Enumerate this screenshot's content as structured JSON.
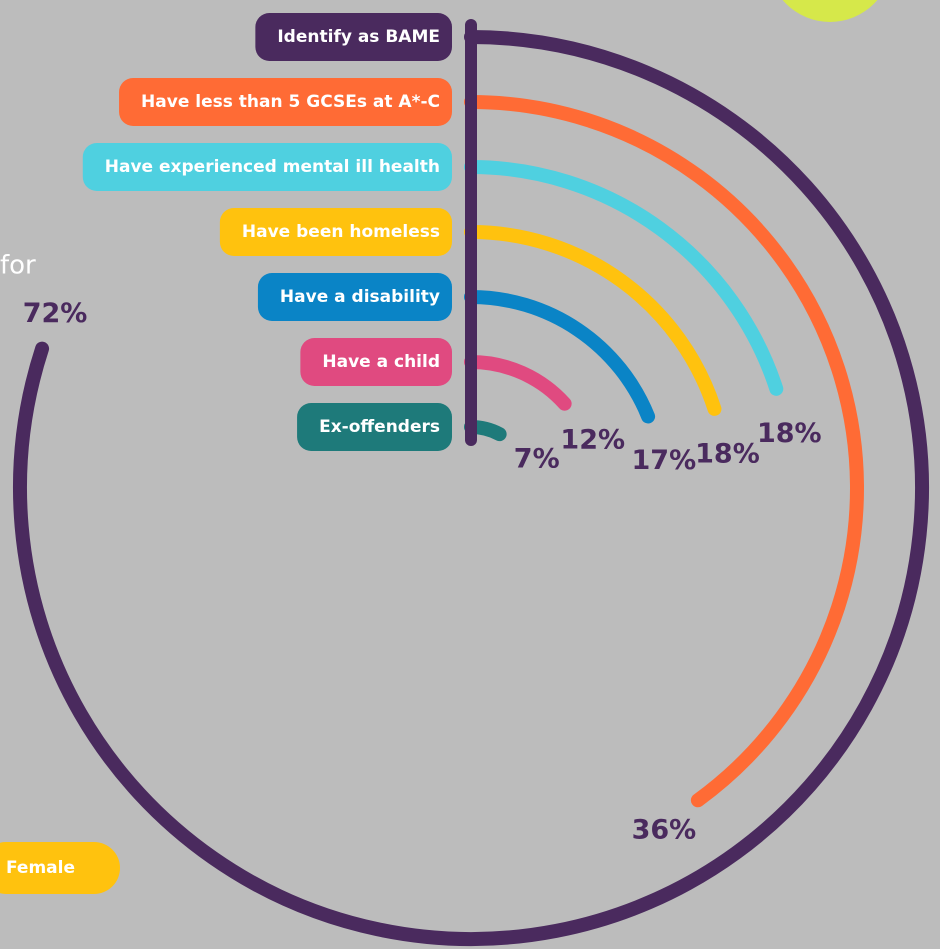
{
  "chart_data": {
    "type": "radial_bar",
    "categories": [
      "Identify as BAME",
      "Have less than 5 GCSEs at A*-C",
      "Have experienced mental ill health",
      "Have been homeless",
      "Have a disability",
      "Have a child",
      "Ex-offenders"
    ],
    "values": [
      72,
      36,
      18,
      18,
      17,
      12,
      7
    ],
    "value_labels": [
      "72%",
      "36%",
      "18%",
      "18%",
      "17%",
      "12%",
      "7%"
    ],
    "colors": [
      "#4a2a5e",
      "#ff6b35",
      "#4fd0e0",
      "#ffc20e",
      "#0a84c6",
      "#e04a80",
      "#1e7a7a"
    ],
    "annotations": [
      "for",
      "Female"
    ]
  }
}
